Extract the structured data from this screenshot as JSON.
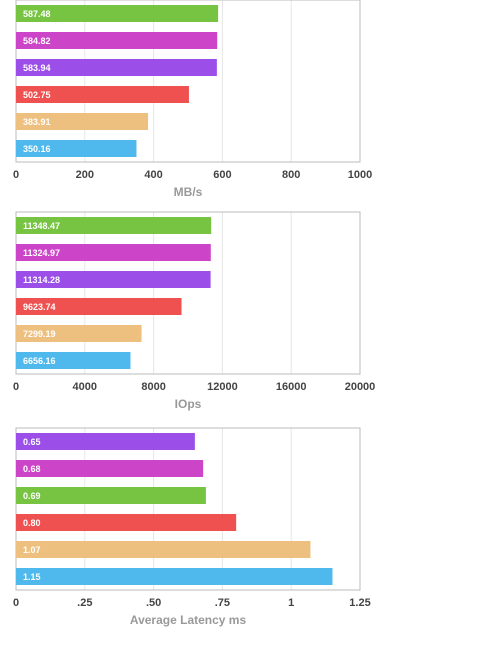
{
  "chart_data": [
    {
      "type": "bar",
      "orientation": "horizontal",
      "x_label": "MB/s",
      "values": [
        587.48,
        584.82,
        583.94,
        502.75,
        383.91,
        350.16
      ],
      "colors": [
        "#76c442",
        "#cc44c8",
        "#9b4fe8",
        "#ef5050",
        "#eec080",
        "#4fb8ec"
      ],
      "xlim": [
        0,
        1000
      ],
      "xticks": [
        0,
        200,
        400,
        600,
        800,
        1000
      ],
      "grid": true
    },
    {
      "type": "bar",
      "orientation": "horizontal",
      "x_label": "IOps",
      "values": [
        11348.47,
        11324.97,
        11314.28,
        9623.74,
        7299.19,
        6656.16
      ],
      "colors": [
        "#76c442",
        "#cc44c8",
        "#9b4fe8",
        "#ef5050",
        "#eec080",
        "#4fb8ec"
      ],
      "xlim": [
        0,
        20000
      ],
      "xticks": [
        0,
        4000,
        8000,
        12000,
        16000,
        20000
      ],
      "grid": true
    },
    {
      "type": "bar",
      "orientation": "horizontal",
      "x_label": "Average Latency ms",
      "values": [
        0.65,
        0.68,
        0.69,
        0.8,
        1.07,
        1.15
      ],
      "value_labels": [
        "0.65",
        "0.68",
        "0.69",
        "0.80",
        "1.07",
        "1.15"
      ],
      "colors": [
        "#9b4fe8",
        "#cc44c8",
        "#76c442",
        "#ef5050",
        "#eec080",
        "#4fb8ec"
      ],
      "xlim": [
        0,
        1.25
      ],
      "xticks": [
        0,
        {
          "value": 0.25,
          "label": ".25"
        },
        {
          "value": 0.5,
          "label": ".50"
        },
        {
          "value": 0.75,
          "label": ".75"
        },
        1,
        1.25
      ],
      "grid": true
    }
  ]
}
